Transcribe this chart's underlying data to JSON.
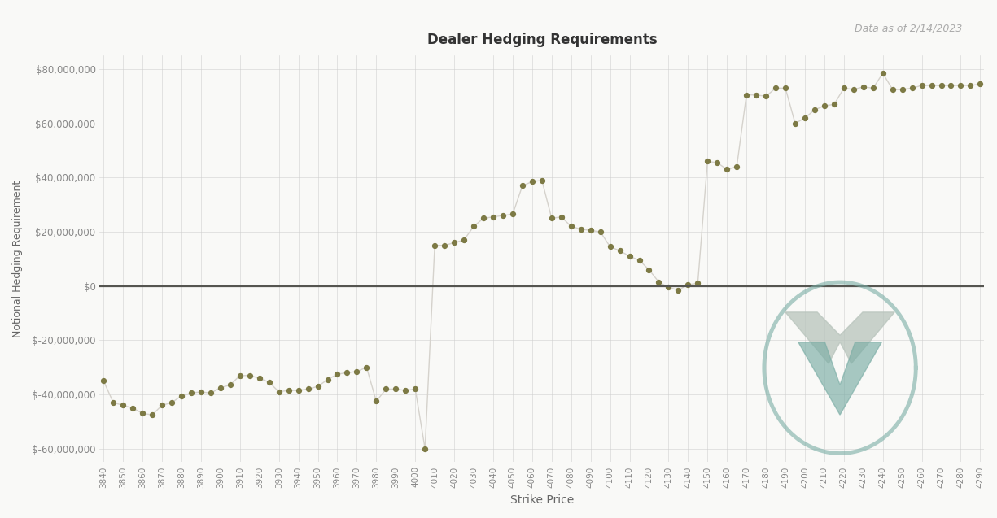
{
  "title": "Dealer Hedging Requirements",
  "subtitle": "Data as of 2/14/2023",
  "xlabel": "Strike Price",
  "ylabel": "Notional Hedging Requirement",
  "background_color": "#f9f9f7",
  "line_color": "#d5d2cc",
  "dot_color": "#7d7a45",
  "zero_line_color": "#555550",
  "ylim": [
    -65000000,
    85000000
  ],
  "strikes": [
    3840,
    3845,
    3850,
    3855,
    3860,
    3865,
    3870,
    3875,
    3880,
    3885,
    3890,
    3895,
    3900,
    3905,
    3910,
    3915,
    3920,
    3925,
    3930,
    3935,
    3940,
    3945,
    3950,
    3955,
    3960,
    3965,
    3970,
    3975,
    3980,
    3985,
    3990,
    3995,
    4000,
    4005,
    4010,
    4015,
    4020,
    4025,
    4030,
    4035,
    4040,
    4045,
    4050,
    4055,
    4060,
    4065,
    4070,
    4075,
    4080,
    4085,
    4090,
    4095,
    4100,
    4105,
    4110,
    4115,
    4120,
    4125,
    4130,
    4135,
    4140,
    4145,
    4150,
    4155,
    4160,
    4165,
    4170,
    4175,
    4180,
    4185,
    4190,
    4195,
    4200,
    4205,
    4210,
    4215,
    4220,
    4225,
    4230,
    4235,
    4240,
    4245,
    4250,
    4255,
    4260,
    4265,
    4270,
    4275,
    4280,
    4285,
    4290
  ],
  "values": [
    -35000000,
    -43000000,
    -44000000,
    -45000000,
    -47000000,
    -47500000,
    -44000000,
    -43000000,
    -40500000,
    -39500000,
    -39000000,
    -39500000,
    -37500000,
    -36500000,
    -33000000,
    -33000000,
    -34000000,
    -35500000,
    -39000000,
    -38500000,
    -38500000,
    -38000000,
    -37000000,
    -34500000,
    -32500000,
    -32000000,
    -31500000,
    -30000000,
    -42500000,
    -38000000,
    -38000000,
    -38500000,
    -38000000,
    -60000000,
    15000000,
    15000000,
    16000000,
    17000000,
    22000000,
    25000000,
    25500000,
    26000000,
    26500000,
    37000000,
    38500000,
    39000000,
    25000000,
    25500000,
    22000000,
    21000000,
    20500000,
    20000000,
    14500000,
    13000000,
    11000000,
    9500000,
    6000000,
    1500000,
    -500000,
    -1500000,
    500000,
    1000000,
    46000000,
    45500000,
    43000000,
    44000000,
    70500000,
    70500000,
    70000000,
    73000000,
    73000000,
    60000000,
    62000000,
    65000000,
    66500000,
    67000000,
    73000000,
    72500000,
    73500000,
    73000000,
    78500000,
    72500000,
    72500000,
    73000000,
    74000000,
    74000000,
    74000000,
    74000000,
    74000000,
    74000000,
    74500000
  ],
  "yticks": [
    -60000000,
    -40000000,
    -20000000,
    0,
    20000000,
    40000000,
    60000000,
    80000000
  ],
  "logo_outer_color": "#7aada5",
  "logo_fill_color_top": "#b8c4bc",
  "logo_fill_color_bottom": "#7aada5"
}
